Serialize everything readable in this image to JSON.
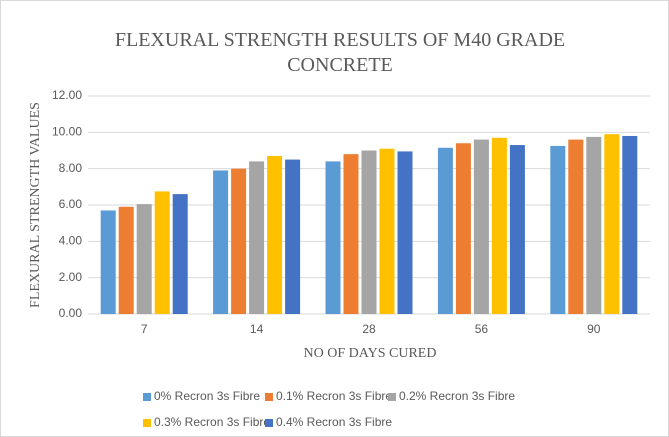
{
  "chart_data": {
    "type": "bar",
    "title": "FLEXURAL STRENGTH RESULTS OF M40 GRADE CONCRETE",
    "y_label": "FLEXURAL STRENGTH VALUES",
    "x_label": "NO OF DAYS CURED",
    "categories": [
      "7",
      "14",
      "28",
      "56",
      "90"
    ],
    "series": [
      {
        "name": "0% Recron 3s Fibre",
        "color": "#5b9bd5",
        "values": [
          5.7,
          7.9,
          8.4,
          9.15,
          9.25
        ]
      },
      {
        "name": "0.1% Recron 3s Fibre",
        "color": "#ed7d31",
        "values": [
          5.9,
          8.0,
          8.8,
          9.4,
          9.6
        ]
      },
      {
        "name": "0.2% Recron 3s Fibre",
        "color": "#a5a5a5",
        "values": [
          6.05,
          8.4,
          9.0,
          9.6,
          9.75
        ]
      },
      {
        "name": "0.3% Recron 3s Fibre",
        "color": "#ffc000",
        "values": [
          6.75,
          8.7,
          9.1,
          9.7,
          9.9
        ]
      },
      {
        "name": "0.4% Recron 3s Fibre",
        "color": "#4472c4",
        "values": [
          6.6,
          8.5,
          8.95,
          9.3,
          9.8
        ]
      }
    ],
    "ylim": [
      0,
      12
    ],
    "yticks": [
      {
        "value": 0,
        "label": "0.00"
      },
      {
        "value": 2,
        "label": "2.00"
      },
      {
        "value": 4,
        "label": "4.00"
      },
      {
        "value": 6,
        "label": "6.00"
      },
      {
        "value": 8,
        "label": "8.00"
      },
      {
        "value": 10,
        "label": "10.00"
      },
      {
        "value": 12,
        "label": "12.00"
      }
    ],
    "grid": true,
    "legend": "bottom"
  }
}
